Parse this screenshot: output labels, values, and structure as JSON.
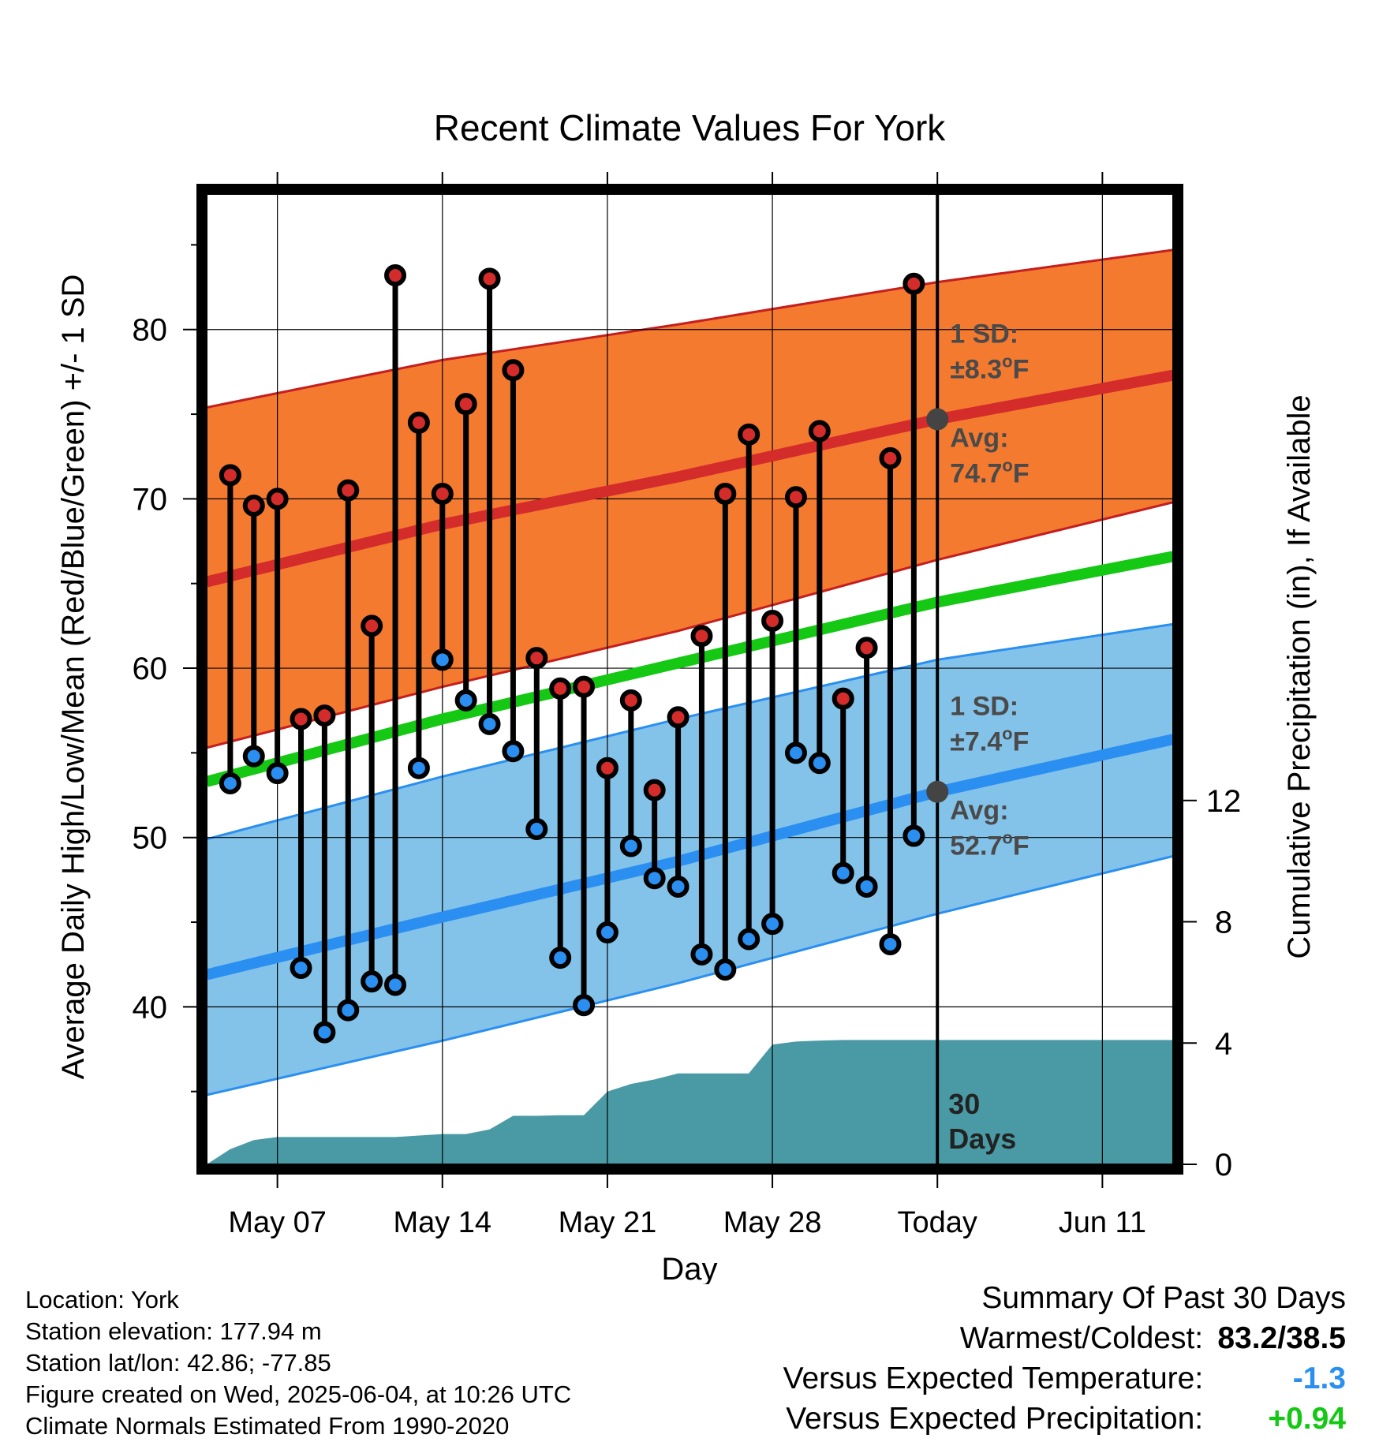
{
  "chart_data": {
    "type": "line",
    "title": "Recent Climate Values For York",
    "xlabel": "Day",
    "ylabel": "Average Daily High/Low/Mean (Red/Blue/Green) +/- 1 SD",
    "y2label": "Cumulative Precipitation (in), If Available",
    "x_range": [
      "2025-05-04",
      "2025-06-14"
    ],
    "x_ticks": [
      {
        "date": "2025-05-07",
        "label": "May 07"
      },
      {
        "date": "2025-05-14",
        "label": "May 14"
      },
      {
        "date": "2025-05-21",
        "label": "May 21"
      },
      {
        "date": "2025-05-28",
        "label": "May 28"
      },
      {
        "date": "2025-06-04",
        "label": "Today"
      },
      {
        "date": "2025-06-11",
        "label": "Jun 11"
      }
    ],
    "ylim": [
      30.7,
      88
    ],
    "y_ticks": [
      40,
      50,
      60,
      70,
      80
    ],
    "y2lim": [
      0,
      32
    ],
    "y2_ticks": [
      0,
      4,
      8,
      12
    ],
    "grid": true,
    "today": "2025-06-04",
    "today_label": "30 Days",
    "dates": [
      "2025-05-05",
      "2025-05-06",
      "2025-05-07",
      "2025-05-08",
      "2025-05-09",
      "2025-05-10",
      "2025-05-11",
      "2025-05-12",
      "2025-05-13",
      "2025-05-14",
      "2025-05-15",
      "2025-05-16",
      "2025-05-17",
      "2025-05-18",
      "2025-05-19",
      "2025-05-20",
      "2025-05-21",
      "2025-05-22",
      "2025-05-23",
      "2025-05-24",
      "2025-05-25",
      "2025-05-26",
      "2025-05-27",
      "2025-05-28",
      "2025-05-29",
      "2025-05-30",
      "2025-05-31",
      "2025-06-01",
      "2025-06-02",
      "2025-06-03"
    ],
    "series": [
      {
        "name": "Daily High",
        "color": "#d42b2b",
        "values": [
          71.4,
          69.6,
          70.0,
          57.0,
          57.2,
          70.5,
          62.5,
          83.2,
          74.5,
          70.3,
          75.6,
          83.0,
          77.6,
          60.6,
          58.8,
          58.9,
          54.1,
          58.1,
          52.8,
          57.1,
          61.9,
          70.3,
          73.8,
          62.8,
          70.1,
          74.0,
          58.2,
          61.2,
          72.4,
          82.7
        ]
      },
      {
        "name": "Daily Low",
        "color": "#2a8ff0",
        "values": [
          53.2,
          54.8,
          53.8,
          42.3,
          38.5,
          39.8,
          41.5,
          41.3,
          54.1,
          60.5,
          58.1,
          56.7,
          55.1,
          50.5,
          42.9,
          40.1,
          44.4,
          49.5,
          47.6,
          47.1,
          43.1,
          42.2,
          44.0,
          44.9,
          55.0,
          54.4,
          47.9,
          47.1,
          43.7,
          50.1
        ]
      }
    ],
    "normals": {
      "x": [
        "2025-05-04",
        "2025-05-14",
        "2025-05-24",
        "2025-06-04",
        "2025-06-14"
      ],
      "high_avg": [
        65.1,
        68.5,
        71.3,
        74.7,
        77.3
      ],
      "high_upper": [
        75.4,
        78.2,
        80.3,
        82.8,
        84.7
      ],
      "high_lower": [
        55.3,
        58.9,
        62.2,
        66.4,
        69.8
      ],
      "low_avg": [
        41.9,
        45.3,
        48.6,
        52.7,
        55.8
      ],
      "low_upper": [
        49.9,
        53.6,
        57.0,
        60.5,
        62.6
      ],
      "low_lower": [
        34.8,
        38.0,
        41.4,
        45.5,
        48.9
      ],
      "mean_avg": [
        53.3,
        57.0,
        60.3,
        63.9,
        66.6
      ]
    },
    "precip": {
      "dates": [
        "2025-05-04",
        "2025-05-05",
        "2025-05-06",
        "2025-05-07",
        "2025-05-08",
        "2025-05-09",
        "2025-05-10",
        "2025-05-11",
        "2025-05-12",
        "2025-05-13",
        "2025-05-14",
        "2025-05-15",
        "2025-05-16",
        "2025-05-17",
        "2025-05-18",
        "2025-05-19",
        "2025-05-20",
        "2025-05-21",
        "2025-05-22",
        "2025-05-23",
        "2025-05-24",
        "2025-05-25",
        "2025-05-26",
        "2025-05-27",
        "2025-05-28",
        "2025-05-29",
        "2025-05-30",
        "2025-05-31",
        "2025-06-01",
        "2025-06-02",
        "2025-06-03",
        "2025-06-14"
      ],
      "values": [
        0,
        0.5,
        0.8,
        0.9,
        0.9,
        0.9,
        0.9,
        0.9,
        0.9,
        0.95,
        1.0,
        1.0,
        1.15,
        1.6,
        1.6,
        1.62,
        1.62,
        2.4,
        2.65,
        2.8,
        3.0,
        3.0,
        3.0,
        3.0,
        3.95,
        4.05,
        4.08,
        4.1,
        4.1,
        4.1,
        4.1,
        4.1
      ],
      "color": "#4a9aa5"
    },
    "colors": {
      "high_band": "#f47a30",
      "low_band": "#84c3e9",
      "high_line": "#d42b2b",
      "low_line": "#2a8ff0",
      "mean_line": "#14c814",
      "precip": "#4a9aa5"
    },
    "annotations": {
      "high_sd_label": "1 SD:",
      "high_sd_value": "±8.3",
      "high_avg_label": "Avg:",
      "high_avg_value": "74.7",
      "low_sd_label": "1 SD:",
      "low_sd_value": "±7.4",
      "low_avg_label": "Avg:",
      "low_avg_value": "52.7",
      "unit_degree": "o",
      "unit_letter": "F",
      "high_avg_point": 74.7,
      "low_avg_point": 52.7
    }
  },
  "info": {
    "location": "Location: York",
    "elevation": "Station elevation: 177.94 m",
    "latlon": "Station lat/lon: 42.86; -77.85",
    "created": "Figure created on Wed, 2025-06-04, at 10:26 UTC",
    "normals": "Climate Normals Estimated From 1990-2020"
  },
  "summary": {
    "title": "Summary Of Past 30 Days",
    "warm_cold_label": "Warmest/Coldest:",
    "warm_cold_value": "83.2/38.5",
    "temp_label": "Versus Expected Temperature:",
    "temp_value": "-1.3",
    "temp_color": "#2a8ff0",
    "precip_label": "Versus Expected Precipitation:",
    "precip_value": "+0.94",
    "precip_color": "#14c814"
  }
}
